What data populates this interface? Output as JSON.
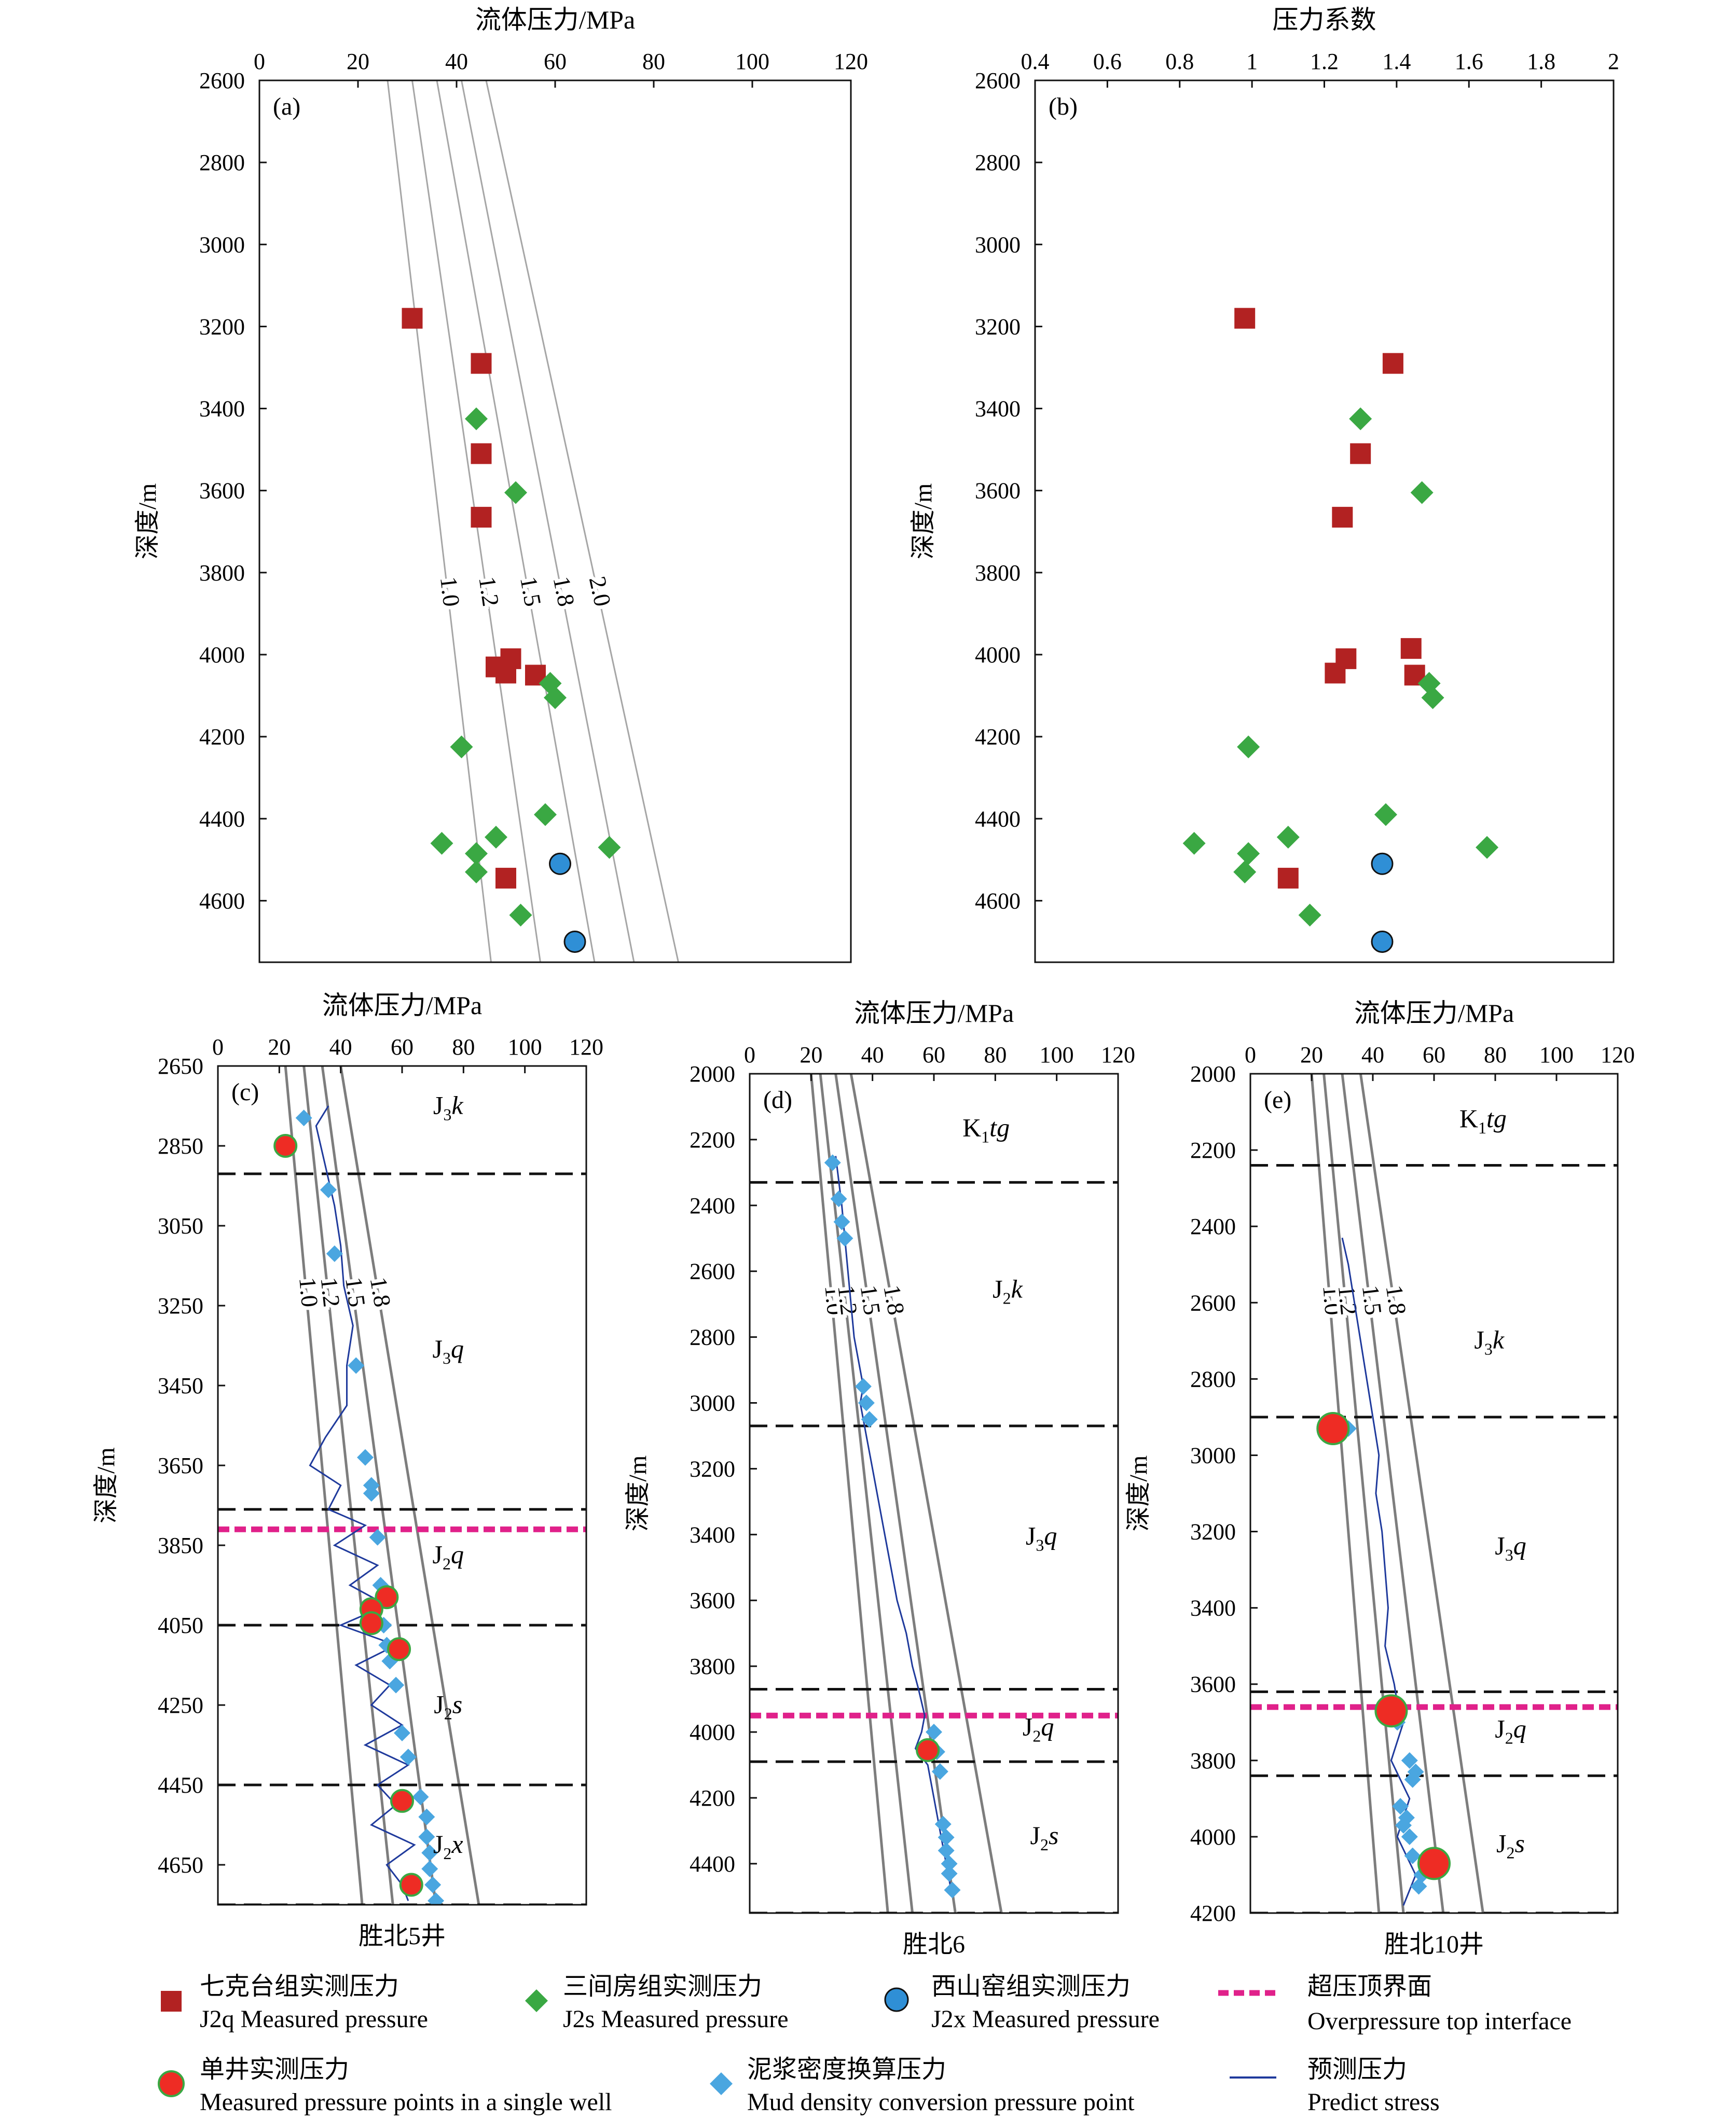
{
  "legend": {
    "j2q": {
      "zh": "七克台组实测压力",
      "en": "J2q Measured pressure"
    },
    "j2s": {
      "zh": "三间房组实测压力",
      "en": "J2s Measured pressure"
    },
    "j2x": {
      "zh": "西山窑组实测压力",
      "en": "J2x Measured pressure"
    },
    "overpressure": {
      "zh": "超压顶界面",
      "en": "Overpressure top interface"
    },
    "single_well": {
      "zh": "单井实测压力",
      "en": "Measured pressure points in a single well"
    },
    "mud": {
      "zh": "泥浆密度换算压力",
      "en": "Mud density conversion pressure point"
    },
    "predict": {
      "zh": "预测压力",
      "en": "Predict stress"
    }
  },
  "colors": {
    "j2q": "#b22222",
    "j2s": "#3aa843",
    "j2x": "#2f8fd6",
    "single_well": "#ee2c24",
    "mud": "#4aa6e0",
    "predict": "#1f3a9c",
    "overpressure": "#e0218a",
    "coef_line": "#9a9a9a"
  },
  "chart_data": [
    {
      "id": "a",
      "panel_label": "(a)",
      "type": "scatter",
      "xlabel": "流体压力/MPa",
      "ylabel": "深度/m",
      "xlim": [
        0,
        120
      ],
      "ylim": [
        2600,
        4750
      ],
      "y_inverted": true,
      "x_axis": "top",
      "xticks": [
        0,
        20,
        40,
        60,
        80,
        100,
        120
      ],
      "yticks": [
        2600,
        2800,
        3000,
        3200,
        3400,
        3600,
        3800,
        4000,
        4200,
        4400,
        4600
      ],
      "coef_lines": [
        {
          "label": "1.0",
          "top": [
            26,
            2600
          ],
          "bottom": [
            47,
            4750
          ]
        },
        {
          "label": "1.2",
          "top": [
            31,
            2600
          ],
          "bottom": [
            57,
            4750
          ]
        },
        {
          "label": "1.5",
          "top": [
            36,
            2600
          ],
          "bottom": [
            68,
            4750
          ]
        },
        {
          "label": "1.8",
          "top": [
            41,
            2600
          ],
          "bottom": [
            76,
            4750
          ]
        },
        {
          "label": "2.0",
          "top": [
            46,
            2600
          ],
          "bottom": [
            85,
            4750
          ]
        }
      ],
      "series": [
        {
          "name": "J2q",
          "marker": "square",
          "x": [
            31,
            45,
            45,
            45,
            51,
            56,
            50,
            48,
            50
          ],
          "y": [
            3180,
            3290,
            3510,
            3665,
            4010,
            4050,
            4045,
            4030,
            4545
          ]
        },
        {
          "name": "J2s",
          "marker": "diamond",
          "x": [
            44,
            52,
            59,
            60,
            41,
            58,
            37,
            48,
            44,
            71,
            44,
            53
          ],
          "y": [
            3425,
            3605,
            4070,
            4105,
            4225,
            4390,
            4460,
            4445,
            4485,
            4470,
            4530,
            4635
          ]
        },
        {
          "name": "J2x",
          "marker": "circle",
          "x": [
            61,
            64
          ],
          "y": [
            4510,
            4700
          ]
        }
      ]
    },
    {
      "id": "b",
      "panel_label": "(b)",
      "type": "scatter",
      "xlabel": "压力系数",
      "ylabel": "深度/m",
      "xlim": [
        0.4,
        2.0
      ],
      "ylim": [
        2600,
        4750
      ],
      "y_inverted": true,
      "x_axis": "top",
      "xticks": [
        0.4,
        0.6,
        0.8,
        1.0,
        1.2,
        1.4,
        1.6,
        1.8,
        2.0
      ],
      "xtick_labels": [
        "0.4",
        "0.6",
        "0.8",
        "1",
        "1.2",
        "1.4",
        "1.6",
        "1.8",
        "2"
      ],
      "yticks": [
        2600,
        2800,
        3000,
        3200,
        3400,
        3600,
        3800,
        4000,
        4200,
        4400,
        4600
      ],
      "series": [
        {
          "name": "J2q",
          "marker": "square",
          "x": [
            0.98,
            1.39,
            1.3,
            1.25,
            1.44,
            1.26,
            1.23,
            1.45,
            1.1
          ],
          "y": [
            3180,
            3290,
            3510,
            3665,
            3985,
            4010,
            4045,
            4050,
            4545
          ]
        },
        {
          "name": "J2s",
          "marker": "diamond",
          "x": [
            1.3,
            1.47,
            1.49,
            1.5,
            0.99,
            1.37,
            0.84,
            1.1,
            0.99,
            1.65,
            0.98,
            1.16
          ],
          "y": [
            3425,
            3605,
            4070,
            4105,
            4225,
            4390,
            4460,
            4445,
            4485,
            4470,
            4530,
            4635
          ]
        },
        {
          "name": "J2x",
          "marker": "circle",
          "x": [
            1.36,
            1.36
          ],
          "y": [
            4510,
            4700
          ]
        }
      ]
    },
    {
      "id": "c",
      "panel_label": "(c)",
      "type": "line",
      "well": "胜北5井",
      "xlabel": "流体压力/MPa",
      "ylabel": "深度/m",
      "xlim": [
        0,
        120
      ],
      "ylim": [
        2650,
        4750
      ],
      "y_inverted": true,
      "x_axis": "top",
      "xticks": [
        0,
        20,
        40,
        60,
        80,
        100,
        120
      ],
      "yticks": [
        2650,
        2850,
        3050,
        3250,
        3450,
        3650,
        3850,
        4050,
        4250,
        4450,
        4650
      ],
      "coef_lines": [
        {
          "label": "1.0",
          "top": [
            22,
            2650
          ],
          "bottom": [
            47,
            4750
          ]
        },
        {
          "label": "1.2",
          "top": [
            28,
            2650
          ],
          "bottom": [
            57,
            4750
          ]
        },
        {
          "label": "1.5",
          "top": [
            34,
            2650
          ],
          "bottom": [
            71,
            4750
          ]
        },
        {
          "label": "1.8",
          "top": [
            40,
            2650
          ],
          "bottom": [
            85,
            4750
          ]
        }
      ],
      "boundaries": [
        2920,
        3760,
        4050,
        4450,
        4750
      ],
      "overpressure_top": 3810,
      "formations": [
        {
          "base": "J",
          "sub": "3",
          "suffix": "k",
          "x": 75,
          "y": 2770
        },
        {
          "base": "J",
          "sub": "3",
          "suffix": "q",
          "x": 75,
          "y": 3380
        },
        {
          "base": "J",
          "sub": "2",
          "suffix": "q",
          "x": 75,
          "y": 3895
        },
        {
          "base": "J",
          "sub": "2",
          "suffix": "s",
          "x": 75,
          "y": 4270
        },
        {
          "base": "J",
          "sub": "2",
          "suffix": "x",
          "x": 75,
          "y": 4620
        }
      ],
      "predict": {
        "depth": [
          2750,
          2800,
          2900,
          3000,
          3100,
          3200,
          3300,
          3400,
          3500,
          3580,
          3650,
          3700,
          3760,
          3800,
          3850,
          3900,
          3950,
          4000,
          4050,
          4100,
          4150,
          4200,
          4250,
          4300,
          4350,
          4400,
          4450,
          4500,
          4550,
          4600,
          4650,
          4700,
          4740
        ],
        "value": [
          36,
          32,
          35,
          38,
          40,
          41,
          44,
          42,
          42,
          35,
          30,
          40,
          36,
          48,
          38,
          52,
          43,
          55,
          40,
          58,
          45,
          56,
          50,
          60,
          48,
          62,
          52,
          58,
          50,
          64,
          55,
          60,
          62
        ]
      },
      "mud": {
        "x": [
          28,
          36,
          38,
          45,
          48,
          50,
          50,
          52,
          53,
          54,
          55,
          56,
          58,
          60,
          62,
          66,
          68,
          68,
          69,
          69,
          70,
          71
        ],
        "y": [
          2780,
          2960,
          3120,
          3400,
          3630,
          3700,
          3720,
          3830,
          3950,
          4050,
          4100,
          4140,
          4200,
          4320,
          4380,
          4480,
          4530,
          4580,
          4620,
          4660,
          4700,
          4740
        ]
      },
      "single": {
        "x": [
          22,
          55,
          50,
          50,
          59,
          60,
          63
        ],
        "y": [
          2850,
          3980,
          4010,
          4045,
          4110,
          4490,
          4700
        ]
      }
    },
    {
      "id": "d",
      "panel_label": "(d)",
      "type": "line",
      "well": "胜北6",
      "xlabel": "流体压力/MPa",
      "ylabel": "深度/m",
      "xlim": [
        0,
        120
      ],
      "ylim": [
        2000,
        4550
      ],
      "y_inverted": true,
      "x_axis": "top",
      "xticks": [
        0,
        20,
        40,
        60,
        80,
        100,
        120
      ],
      "yticks": [
        2000,
        2200,
        2400,
        2600,
        2800,
        3000,
        3200,
        3400,
        3600,
        3800,
        4000,
        4200,
        4400
      ],
      "coef_lines": [
        {
          "label": "1.0",
          "top": [
            20,
            2000
          ],
          "bottom": [
            45,
            4550
          ]
        },
        {
          "label": "1.2",
          "top": [
            23,
            2000
          ],
          "bottom": [
            53,
            4550
          ]
        },
        {
          "label": "1.5",
          "top": [
            28,
            2000
          ],
          "bottom": [
            67,
            4550
          ]
        },
        {
          "label": "1.8",
          "top": [
            33,
            2000
          ],
          "bottom": [
            82,
            4550
          ]
        }
      ],
      "boundaries": [
        2330,
        3070,
        3870,
        4090,
        4550
      ],
      "overpressure_top": 3950,
      "formations": [
        {
          "base": "K",
          "sub": "1",
          "suffix": "tg",
          "x": 77,
          "y": 2190
        },
        {
          "base": "J",
          "sub": "2",
          "suffix": "k",
          "x": 84,
          "y": 2680
        },
        {
          "base": "J",
          "sub": "3",
          "suffix": "q",
          "x": 95,
          "y": 3430
        },
        {
          "base": "J",
          "sub": "2",
          "suffix": "q",
          "x": 94,
          "y": 4010
        },
        {
          "base": "J",
          "sub": "2",
          "suffix": "s",
          "x": 96,
          "y": 4340
        }
      ],
      "predict": {
        "depth": [
          2250,
          2400,
          2600,
          2800,
          2950,
          3000,
          3100,
          3200,
          3300,
          3400,
          3500,
          3600,
          3700,
          3800,
          3870,
          3950,
          4000,
          4050,
          4100,
          4200,
          4300,
          4400,
          4500
        ],
        "value": [
          28,
          30,
          32,
          34,
          37,
          36,
          38,
          40,
          42,
          44,
          46,
          48,
          51,
          53,
          55,
          57,
          56,
          54,
          58,
          60,
          62,
          64,
          66
        ]
      },
      "mud": {
        "x": [
          27,
          29,
          30,
          31,
          37,
          38,
          39,
          60,
          61,
          62,
          63,
          64,
          64,
          65,
          65,
          66
        ],
        "y": [
          2270,
          2380,
          2450,
          2500,
          2950,
          3000,
          3050,
          4000,
          4060,
          4120,
          4280,
          4320,
          4360,
          4400,
          4430,
          4480
        ]
      },
      "single": {
        "x": [
          58
        ],
        "y": [
          4055
        ]
      }
    },
    {
      "id": "e",
      "panel_label": "(e)",
      "type": "line",
      "well": "胜北10井",
      "xlabel": "流体压力/MPa",
      "ylabel": "深度/m",
      "xlim": [
        0,
        120
      ],
      "ylim": [
        2000,
        4200
      ],
      "y_inverted": true,
      "x_axis": "top",
      "xticks": [
        0,
        20,
        40,
        60,
        80,
        100,
        120
      ],
      "yticks": [
        2000,
        2200,
        2400,
        2600,
        2800,
        3000,
        3200,
        3400,
        3600,
        3800,
        4000,
        4200
      ],
      "coef_lines": [
        {
          "label": "1.0",
          "top": [
            20,
            2000
          ],
          "bottom": [
            42,
            4200
          ]
        },
        {
          "label": "1.2",
          "top": [
            24,
            2000
          ],
          "bottom": [
            50,
            4200
          ]
        },
        {
          "label": "1.5",
          "top": [
            30,
            2000
          ],
          "bottom": [
            63,
            4200
          ]
        },
        {
          "label": "1.8",
          "top": [
            36,
            2000
          ],
          "bottom": [
            76,
            4200
          ]
        }
      ],
      "boundaries": [
        2240,
        2900,
        3620,
        3840,
        4200
      ],
      "overpressure_top": 3660,
      "formations": [
        {
          "base": "K",
          "sub": "1",
          "suffix": "tg",
          "x": 76,
          "y": 2140
        },
        {
          "base": "J",
          "sub": "3",
          "suffix": "k",
          "x": 78,
          "y": 2720
        },
        {
          "base": "J",
          "sub": "3",
          "suffix": "q",
          "x": 85,
          "y": 3260
        },
        {
          "base": "J",
          "sub": "2",
          "suffix": "q",
          "x": 85,
          "y": 3740
        },
        {
          "base": "J",
          "sub": "2",
          "suffix": "s",
          "x": 85,
          "y": 4040
        }
      ],
      "predict": {
        "depth": [
          2430,
          2500,
          2600,
          2700,
          2800,
          2900,
          3000,
          3100,
          3200,
          3300,
          3400,
          3500,
          3600,
          3650,
          3700,
          3800,
          3900,
          4000,
          4100,
          4180
        ],
        "value": [
          30,
          32,
          34,
          36,
          38,
          40,
          42,
          41,
          43,
          44,
          45,
          44,
          47,
          48,
          50,
          46,
          52,
          48,
          54,
          50
        ]
      },
      "mud": {
        "x": [
          32,
          46,
          48,
          52,
          54,
          53,
          49,
          51,
          50,
          52,
          53,
          56,
          55
        ],
        "y": [
          2930,
          3660,
          3700,
          3800,
          3830,
          3850,
          3920,
          3950,
          3970,
          4000,
          4050,
          4100,
          4130
        ]
      },
      "single": {
        "x": [
          27,
          46,
          60
        ],
        "y": [
          2930,
          3670,
          4070
        ]
      }
    }
  ]
}
